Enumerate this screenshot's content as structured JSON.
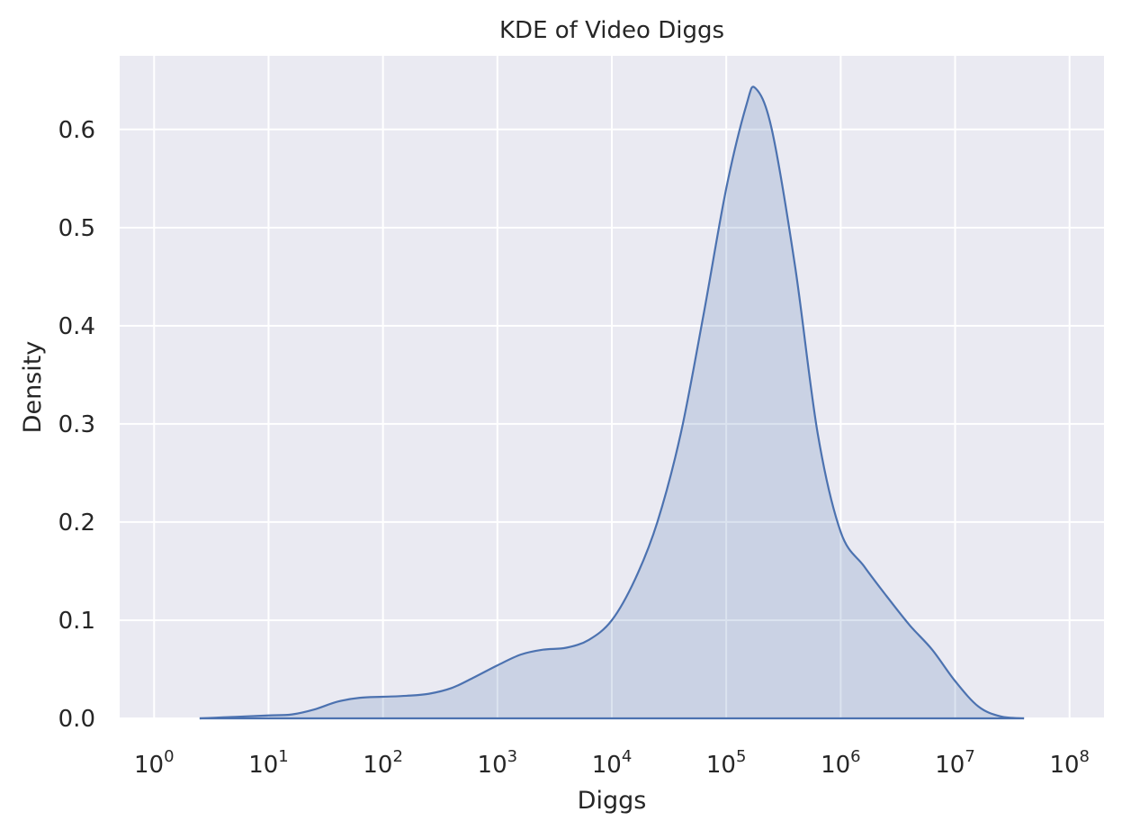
{
  "chart_data": {
    "type": "area",
    "title": "KDE of Video Diggs",
    "xlabel": "Diggs",
    "ylabel": "Density",
    "x_scale": "log",
    "x_base": 10,
    "xlim": [
      0.5,
      200000000
    ],
    "ylim": [
      0,
      0.675
    ],
    "x_ticks": [
      {
        "value": 1,
        "base": "10",
        "exp": "0"
      },
      {
        "value": 10,
        "base": "10",
        "exp": "1"
      },
      {
        "value": 100,
        "base": "10",
        "exp": "2"
      },
      {
        "value": 1000,
        "base": "10",
        "exp": "3"
      },
      {
        "value": 10000,
        "base": "10",
        "exp": "4"
      },
      {
        "value": 100000,
        "base": "10",
        "exp": "5"
      },
      {
        "value": 1000000,
        "base": "10",
        "exp": "6"
      },
      {
        "value": 10000000,
        "base": "10",
        "exp": "7"
      },
      {
        "value": 100000000,
        "base": "10",
        "exp": "8"
      }
    ],
    "y_ticks": [
      {
        "value": 0.0,
        "label": "0.0"
      },
      {
        "value": 0.1,
        "label": "0.1"
      },
      {
        "value": 0.2,
        "label": "0.2"
      },
      {
        "value": 0.3,
        "label": "0.3"
      },
      {
        "value": 0.4,
        "label": "0.4"
      },
      {
        "value": 0.5,
        "label": "0.5"
      },
      {
        "value": 0.6,
        "label": "0.6"
      }
    ],
    "grid": true,
    "series": [
      {
        "color": "#4c72b0",
        "fill_color": "#4c72b0",
        "fill_opacity": 0.2,
        "points": [
          {
            "x": 2.5,
            "y": 0.0
          },
          {
            "x": 4.0,
            "y": 0.001
          },
          {
            "x": 6.3,
            "y": 0.002
          },
          {
            "x": 10,
            "y": 0.003
          },
          {
            "x": 16,
            "y": 0.004
          },
          {
            "x": 25,
            "y": 0.009
          },
          {
            "x": 40,
            "y": 0.017
          },
          {
            "x": 63,
            "y": 0.021
          },
          {
            "x": 100,
            "y": 0.022
          },
          {
            "x": 160,
            "y": 0.023
          },
          {
            "x": 250,
            "y": 0.025
          },
          {
            "x": 400,
            "y": 0.031
          },
          {
            "x": 630,
            "y": 0.042
          },
          {
            "x": 1000,
            "y": 0.054
          },
          {
            "x": 1600,
            "y": 0.065
          },
          {
            "x": 2500,
            "y": 0.07
          },
          {
            "x": 4000,
            "y": 0.072
          },
          {
            "x": 6300,
            "y": 0.08
          },
          {
            "x": 10000,
            "y": 0.1
          },
          {
            "x": 16000,
            "y": 0.142
          },
          {
            "x": 25000,
            "y": 0.2
          },
          {
            "x": 40000,
            "y": 0.29
          },
          {
            "x": 63000,
            "y": 0.41
          },
          {
            "x": 100000,
            "y": 0.54
          },
          {
            "x": 150000,
            "y": 0.625
          },
          {
            "x": 180000,
            "y": 0.642
          },
          {
            "x": 250000,
            "y": 0.6
          },
          {
            "x": 400000,
            "y": 0.46
          },
          {
            "x": 630000,
            "y": 0.29
          },
          {
            "x": 1000000,
            "y": 0.19
          },
          {
            "x": 1600000,
            "y": 0.155
          },
          {
            "x": 2500000,
            "y": 0.125
          },
          {
            "x": 4000000,
            "y": 0.095
          },
          {
            "x": 6300000,
            "y": 0.07
          },
          {
            "x": 10000000,
            "y": 0.038
          },
          {
            "x": 16000000,
            "y": 0.012
          },
          {
            "x": 25000000,
            "y": 0.002
          },
          {
            "x": 40000000,
            "y": 0.0
          }
        ]
      }
    ]
  }
}
